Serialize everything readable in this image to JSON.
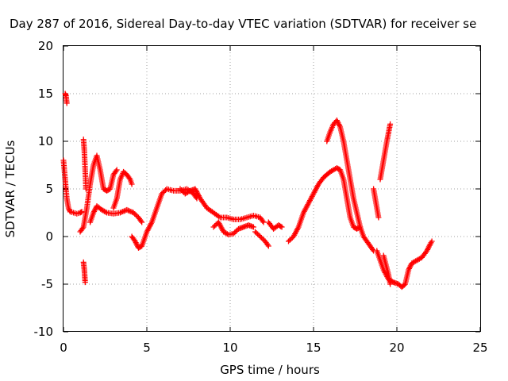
{
  "chart_data": {
    "type": "scatter",
    "title": "Day 287 of 2016, Sidereal Day-to-day VTEC variation (SDTVAR) for receiver se",
    "xlabel": "GPS time / hours",
    "ylabel": "SDTVAR / TECUs",
    "xlim": [
      0,
      25
    ],
    "ylim": [
      -10,
      20
    ],
    "xticks": [
      "0",
      "5",
      "10",
      "15",
      "20",
      "25"
    ],
    "yticks": [
      "-10",
      "-5",
      "0",
      "5",
      "10",
      "15",
      "20"
    ],
    "grid": true,
    "marker": "+",
    "color": "#ff0000",
    "traces": [
      {
        "x": [
          0.0,
          0.1,
          0.2,
          0.3,
          0.4,
          0.6,
          0.8,
          1.0,
          1.1
        ],
        "y": [
          8.0,
          6.0,
          4.0,
          3.0,
          2.6,
          2.5,
          2.4,
          2.5,
          2.6
        ]
      },
      {
        "x": [
          0.1,
          0.15,
          0.2
        ],
        "y": [
          15.0,
          14.8,
          14.0
        ]
      },
      {
        "x": [
          1.0,
          1.2,
          1.4,
          1.6,
          1.8,
          2.0,
          2.2,
          2.4,
          2.6,
          2.8,
          3.0,
          3.2
        ],
        "y": [
          0.5,
          1.0,
          3.0,
          5.5,
          7.5,
          8.5,
          7.0,
          5.0,
          4.8,
          5.0,
          6.5,
          7.0
        ]
      },
      {
        "x": [
          1.2,
          1.25,
          1.3,
          1.35
        ],
        "y": [
          10.2,
          9.0,
          7.0,
          5.0
        ]
      },
      {
        "x": [
          1.2,
          1.25,
          1.3
        ],
        "y": [
          -2.7,
          -3.5,
          -4.8
        ]
      },
      {
        "x": [
          1.6,
          1.8,
          2.0,
          2.3,
          2.6,
          3.0,
          3.4,
          3.8,
          4.2,
          4.5,
          4.7
        ],
        "y": [
          1.5,
          2.5,
          3.2,
          2.8,
          2.5,
          2.4,
          2.5,
          2.8,
          2.5,
          2.0,
          1.5
        ]
      },
      {
        "x": [
          3.0,
          3.2,
          3.4,
          3.6,
          3.8,
          4.0,
          4.1
        ],
        "y": [
          3.0,
          4.0,
          6.0,
          6.8,
          6.5,
          6.0,
          5.5
        ]
      },
      {
        "x": [
          4.1,
          4.3,
          4.5,
          4.7,
          5.0,
          5.3,
          5.6,
          5.9,
          6.2,
          6.6,
          7.0,
          7.4,
          7.8,
          8.0
        ],
        "y": [
          0.0,
          -0.5,
          -1.2,
          -1.0,
          0.5,
          1.5,
          3.0,
          4.5,
          5.0,
          4.8,
          4.8,
          5.0,
          4.5,
          4.0
        ]
      },
      {
        "x": [
          7.0,
          7.3,
          7.6,
          7.9,
          8.2,
          8.6,
          9.0,
          9.4,
          9.8,
          10.2,
          10.6,
          11.0,
          11.4,
          11.8,
          12.0
        ],
        "y": [
          5.0,
          4.5,
          4.8,
          5.0,
          4.0,
          3.0,
          2.5,
          2.0,
          2.0,
          1.8,
          1.8,
          2.0,
          2.2,
          2.0,
          1.5
        ]
      },
      {
        "x": [
          9.0,
          9.3,
          9.6,
          9.9,
          10.2,
          10.5,
          10.8,
          11.1,
          11.4
        ],
        "y": [
          1.0,
          1.5,
          0.5,
          0.2,
          0.3,
          0.8,
          1.0,
          1.2,
          1.0
        ]
      },
      {
        "x": [
          11.5,
          11.8,
          12.1,
          12.3
        ],
        "y": [
          0.5,
          0.0,
          -0.5,
          -1.0
        ]
      },
      {
        "x": [
          12.3,
          12.6,
          12.9,
          13.1
        ],
        "y": [
          1.5,
          0.8,
          1.2,
          1.0
        ]
      },
      {
        "x": [
          13.5,
          13.8,
          14.1,
          14.4,
          14.7,
          15.0,
          15.3,
          15.6,
          16.0,
          16.4,
          16.6,
          16.8,
          17.0,
          17.2,
          17.4,
          17.6,
          17.8
        ],
        "y": [
          -0.5,
          0.0,
          1.0,
          2.5,
          3.5,
          4.5,
          5.5,
          6.2,
          6.8,
          7.2,
          7.0,
          6.0,
          4.0,
          2.0,
          1.0,
          0.8,
          1.0
        ]
      },
      {
        "x": [
          15.8,
          16.0,
          16.2,
          16.4,
          16.6,
          16.8,
          17.0,
          17.2,
          17.4,
          17.6,
          17.8,
          18.0,
          18.2,
          18.4,
          18.6
        ],
        "y": [
          10.0,
          11.0,
          11.8,
          12.2,
          11.5,
          10.0,
          8.0,
          6.0,
          4.0,
          2.5,
          1.0,
          0.0,
          -0.5,
          -1.0,
          -1.5
        ]
      },
      {
        "x": [
          18.6,
          18.7,
          18.8,
          18.9
        ],
        "y": [
          5.0,
          4.0,
          3.0,
          2.0
        ]
      },
      {
        "x": [
          19.0,
          19.2,
          19.4,
          19.6
        ],
        "y": [
          6.0,
          8.0,
          10.0,
          11.8
        ]
      },
      {
        "x": [
          18.8,
          19.0,
          19.2,
          19.5,
          19.8,
          20.1,
          20.3,
          20.5,
          20.7,
          20.9,
          21.2,
          21.5,
          21.8,
          22.0,
          22.1
        ],
        "y": [
          -1.5,
          -2.5,
          -3.5,
          -4.5,
          -4.8,
          -5.0,
          -5.3,
          -5.0,
          -3.5,
          -2.8,
          -2.5,
          -2.2,
          -1.5,
          -0.8,
          -0.5
        ]
      },
      {
        "x": [
          19.2,
          19.35,
          19.5,
          19.6
        ],
        "y": [
          -2.0,
          -3.0,
          -4.0,
          -5.0
        ]
      }
    ]
  }
}
